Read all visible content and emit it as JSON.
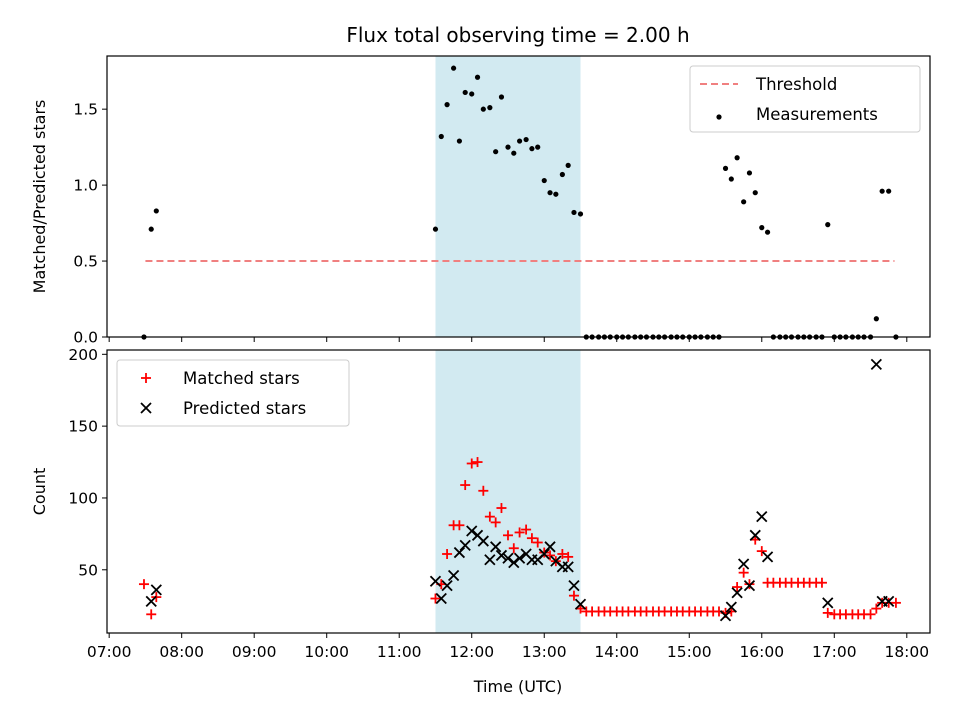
{
  "chart_data": {
    "type": "scatter",
    "title": "Flux total observing time = 2.00 h",
    "xlabel": "Time (UTC)",
    "x_ticks": [
      "07:00",
      "08:00",
      "09:00",
      "10:00",
      "11:00",
      "12:00",
      "13:00",
      "14:00",
      "15:00",
      "16:00",
      "17:00",
      "18:00"
    ],
    "x_tick_hours": [
      7,
      8,
      9,
      10,
      11,
      12,
      13,
      14,
      15,
      16,
      17,
      18
    ],
    "xlim": [
      6.97,
      18.32
    ],
    "highlight_span": [
      11.5,
      13.5
    ],
    "colors": {
      "threshold": "#f08080",
      "measurements": "#000000",
      "matched": "#ff0000",
      "predicted": "#000000",
      "span": "#add8e6"
    },
    "panels": [
      {
        "ylabel": "Matched/Predicted stars",
        "ylim": [
          0,
          1.85
        ],
        "y_ticks": [
          0,
          0.5,
          1.0,
          1.5
        ],
        "y_tick_labels": [
          "0.0",
          "0.5",
          "1.0",
          "1.5"
        ],
        "legend": {
          "placement": "upper right",
          "entries": [
            "Threshold",
            "Measurements"
          ]
        },
        "series": [
          {
            "name": "Threshold",
            "style": "dashed-line",
            "x": [
              7.5,
              17.83
            ],
            "y": [
              0.5,
              0.5
            ]
          },
          {
            "name": "Measurements",
            "style": "dot",
            "points": [
              [
                7.48,
                0.0
              ],
              [
                7.58,
                0.71
              ],
              [
                7.65,
                0.83
              ],
              [
                11.5,
                0.71
              ],
              [
                11.58,
                1.32
              ],
              [
                11.66,
                1.53
              ],
              [
                11.75,
                1.77
              ],
              [
                11.83,
                1.29
              ],
              [
                11.91,
                1.61
              ],
              [
                12.0,
                1.6
              ],
              [
                12.08,
                1.71
              ],
              [
                12.16,
                1.5
              ],
              [
                12.25,
                1.51
              ],
              [
                12.33,
                1.22
              ],
              [
                12.41,
                1.58
              ],
              [
                12.5,
                1.25
              ],
              [
                12.58,
                1.21
              ],
              [
                12.66,
                1.29
              ],
              [
                12.75,
                1.3
              ],
              [
                12.83,
                1.24
              ],
              [
                12.91,
                1.25
              ],
              [
                13.0,
                1.03
              ],
              [
                13.08,
                0.95
              ],
              [
                13.16,
                0.94
              ],
              [
                13.25,
                1.07
              ],
              [
                13.33,
                1.13
              ],
              [
                13.41,
                0.82
              ],
              [
                13.5,
                0.81
              ],
              [
                13.58,
                0
              ],
              [
                13.66,
                0
              ],
              [
                13.75,
                0
              ],
              [
                13.83,
                0
              ],
              [
                13.91,
                0
              ],
              [
                14.0,
                0
              ],
              [
                14.08,
                0
              ],
              [
                14.16,
                0
              ],
              [
                14.25,
                0
              ],
              [
                14.33,
                0
              ],
              [
                14.41,
                0
              ],
              [
                14.5,
                0
              ],
              [
                14.58,
                0
              ],
              [
                14.66,
                0
              ],
              [
                14.75,
                0
              ],
              [
                14.83,
                0
              ],
              [
                14.91,
                0
              ],
              [
                15.0,
                0
              ],
              [
                15.08,
                0
              ],
              [
                15.16,
                0
              ],
              [
                15.25,
                0
              ],
              [
                15.33,
                0
              ],
              [
                15.41,
                0
              ],
              [
                15.5,
                1.11
              ],
              [
                15.58,
                1.04
              ],
              [
                15.66,
                1.18
              ],
              [
                15.75,
                0.89
              ],
              [
                15.83,
                1.08
              ],
              [
                15.91,
                0.95
              ],
              [
                16.0,
                0.72
              ],
              [
                16.08,
                0.69
              ],
              [
                16.16,
                0
              ],
              [
                16.25,
                0
              ],
              [
                16.33,
                0
              ],
              [
                16.41,
                0
              ],
              [
                16.5,
                0
              ],
              [
                16.58,
                0
              ],
              [
                16.66,
                0
              ],
              [
                16.75,
                0
              ],
              [
                16.83,
                0
              ],
              [
                16.91,
                0.74
              ],
              [
                17.0,
                0
              ],
              [
                17.08,
                0
              ],
              [
                17.16,
                0
              ],
              [
                17.25,
                0
              ],
              [
                17.33,
                0
              ],
              [
                17.41,
                0
              ],
              [
                17.5,
                0
              ],
              [
                17.58,
                0.12
              ],
              [
                17.66,
                0.96
              ],
              [
                17.75,
                0.96
              ],
              [
                17.85,
                0.0
              ]
            ]
          }
        ]
      },
      {
        "ylabel": "Count",
        "ylim": [
          6,
          203
        ],
        "y_ticks": [
          50,
          100,
          150,
          200
        ],
        "y_tick_labels": [
          "50",
          "100",
          "150",
          "200"
        ],
        "legend": {
          "placement": "upper left",
          "entries": [
            "Matched stars",
            "Predicted stars"
          ]
        },
        "series": [
          {
            "name": "Matched stars",
            "marker": "plus",
            "points": [
              [
                7.48,
                40
              ],
              [
                7.58,
                19
              ],
              [
                7.65,
                31
              ],
              [
                11.5,
                30
              ],
              [
                11.58,
                40
              ],
              [
                11.66,
                61
              ],
              [
                11.75,
                81
              ],
              [
                11.83,
                81
              ],
              [
                11.91,
                109
              ],
              [
                12.0,
                124
              ],
              [
                12.08,
                125
              ],
              [
                12.16,
                105
              ],
              [
                12.25,
                87
              ],
              [
                12.33,
                83
              ],
              [
                12.41,
                93
              ],
              [
                12.5,
                74
              ],
              [
                12.58,
                65
              ],
              [
                12.66,
                76
              ],
              [
                12.75,
                78
              ],
              [
                12.83,
                72
              ],
              [
                12.91,
                69
              ],
              [
                13.0,
                62
              ],
              [
                13.08,
                60
              ],
              [
                13.16,
                56
              ],
              [
                13.25,
                61
              ],
              [
                13.33,
                59
              ],
              [
                13.41,
                32
              ],
              [
                13.5,
                23
              ],
              [
                13.58,
                21
              ],
              [
                13.66,
                21
              ],
              [
                13.75,
                21
              ],
              [
                13.83,
                21
              ],
              [
                13.91,
                21
              ],
              [
                14.0,
                21
              ],
              [
                14.08,
                21
              ],
              [
                14.16,
                21
              ],
              [
                14.25,
                21
              ],
              [
                14.33,
                21
              ],
              [
                14.41,
                21
              ],
              [
                14.5,
                21
              ],
              [
                14.58,
                21
              ],
              [
                14.66,
                21
              ],
              [
                14.75,
                21
              ],
              [
                14.83,
                21
              ],
              [
                14.91,
                21
              ],
              [
                15.0,
                21
              ],
              [
                15.08,
                21
              ],
              [
                15.16,
                21
              ],
              [
                15.25,
                21
              ],
              [
                15.33,
                21
              ],
              [
                15.41,
                21
              ],
              [
                15.5,
                20
              ],
              [
                15.58,
                21
              ],
              [
                15.66,
                38
              ],
              [
                15.75,
                48
              ],
              [
                15.83,
                40
              ],
              [
                15.91,
                71
              ],
              [
                16.0,
                63
              ],
              [
                16.08,
                41
              ],
              [
                16.16,
                41
              ],
              [
                16.25,
                41
              ],
              [
                16.33,
                41
              ],
              [
                16.41,
                41
              ],
              [
                16.5,
                41
              ],
              [
                16.58,
                41
              ],
              [
                16.66,
                41
              ],
              [
                16.75,
                41
              ],
              [
                16.83,
                41
              ],
              [
                16.91,
                20
              ],
              [
                17.0,
                19
              ],
              [
                17.08,
                19
              ],
              [
                17.16,
                19
              ],
              [
                17.25,
                19
              ],
              [
                17.33,
                19
              ],
              [
                17.41,
                19
              ],
              [
                17.5,
                19
              ],
              [
                17.58,
                23
              ],
              [
                17.66,
                27
              ],
              [
                17.75,
                27
              ],
              [
                17.85,
                27
              ]
            ]
          },
          {
            "name": "Predicted stars",
            "marker": "x",
            "points": [
              [
                7.58,
                28
              ],
              [
                7.65,
                36
              ],
              [
                11.5,
                42
              ],
              [
                11.58,
                30
              ],
              [
                11.66,
                39
              ],
              [
                11.75,
                46
              ],
              [
                11.83,
                62
              ],
              [
                11.91,
                67
              ],
              [
                12.0,
                77
              ],
              [
                12.08,
                74
              ],
              [
                12.16,
                70
              ],
              [
                12.25,
                57
              ],
              [
                12.33,
                66
              ],
              [
                12.41,
                60
              ],
              [
                12.5,
                58
              ],
              [
                12.58,
                55
              ],
              [
                12.66,
                58
              ],
              [
                12.75,
                61
              ],
              [
                12.83,
                57
              ],
              [
                12.91,
                57
              ],
              [
                13.0,
                61
              ],
              [
                13.08,
                66
              ],
              [
                13.16,
                56
              ],
              [
                13.25,
                52
              ],
              [
                13.33,
                52
              ],
              [
                13.41,
                39
              ],
              [
                13.5,
                26
              ],
              [
                15.5,
                18
              ],
              [
                15.58,
                24
              ],
              [
                15.66,
                34
              ],
              [
                15.75,
                54
              ],
              [
                15.83,
                39
              ],
              [
                15.91,
                74
              ],
              [
                16.0,
                87
              ],
              [
                16.08,
                59
              ],
              [
                16.91,
                27
              ],
              [
                17.58,
                193
              ],
              [
                17.66,
                28
              ],
              [
                17.75,
                28
              ]
            ]
          }
        ]
      }
    ]
  }
}
